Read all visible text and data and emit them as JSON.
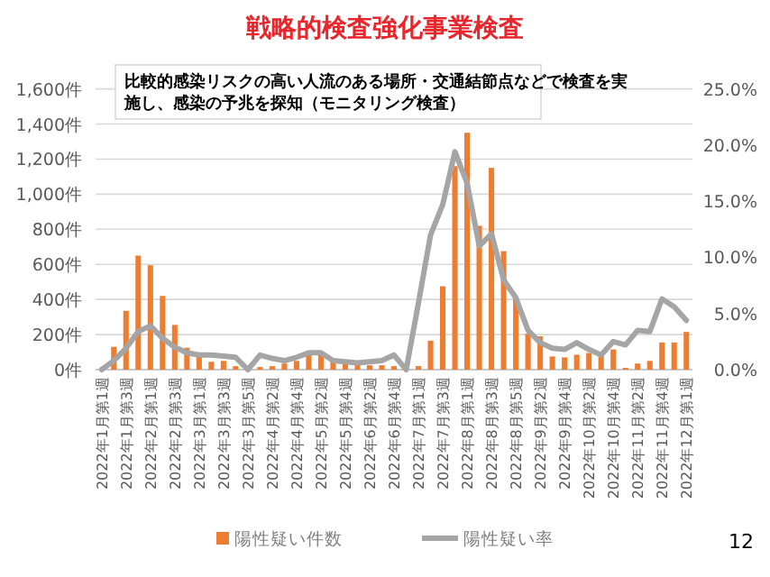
{
  "chart_data": {
    "type": "bar",
    "title": "戦略的検査強化事業検査",
    "categories": [
      "2022年1月第1週",
      null,
      "2022年1月第3週",
      null,
      "2022年2月第1週",
      null,
      "2022年2月第3週",
      null,
      "2022年3月第1週",
      null,
      "2022年3月第3週",
      null,
      "2022年3月第5週",
      null,
      "2022年4月第2週",
      null,
      "2022年4月第4週",
      null,
      "2022年5月第2週",
      null,
      "2022年5月第4週",
      null,
      "2022年6月第2週",
      null,
      "2022年6月第4週",
      null,
      "2022年7月第1週",
      null,
      "2022年7月第3週",
      null,
      "2022年8月第1週",
      null,
      "2022年8月第3週",
      null,
      "2022年8月第5週",
      null,
      "2022年9月第2週",
      null,
      "2022年9月第4週",
      null,
      "2022年10月第2週",
      null,
      "2022年10月第4週",
      null,
      "2022年11月第2週",
      null,
      "2022年11月第4週",
      null,
      "2022年12月第1週"
    ],
    "series": [
      {
        "name": "陽性疑い件数",
        "color": "#ed7d31",
        "values": [
          null,
          130,
          335,
          650,
          595,
          420,
          255,
          125,
          80,
          45,
          50,
          20,
          0,
          15,
          20,
          35,
          50,
          85,
          85,
          50,
          50,
          30,
          25,
          25,
          20,
          0,
          20,
          165,
          475,
          1160,
          1350,
          820,
          1150,
          675,
          410,
          205,
          190,
          75,
          70,
          85,
          95,
          85,
          115,
          10,
          35,
          50,
          155,
          155,
          215
        ]
      },
      {
        "name": "陽性疑い率",
        "type": "line",
        "axis": "y2",
        "color": "#a5a5a5",
        "values": [
          0,
          0.8,
          1.9,
          3.4,
          3.9,
          2.8,
          2.0,
          1.5,
          1.3,
          1.3,
          1.2,
          1.1,
          0,
          1.3,
          1.0,
          0.8,
          1.1,
          1.5,
          1.5,
          0.8,
          0.7,
          0.6,
          0.7,
          0.8,
          1.3,
          0,
          5.9,
          12,
          14.7,
          19.4,
          16.6,
          11,
          12.1,
          8,
          6.4,
          3.5,
          2.4,
          1.9,
          1.8,
          2.4,
          1.8,
          1.3,
          2.5,
          2.2,
          3.5,
          3.4,
          6.3,
          5.6,
          4.4
        ]
      }
    ],
    "ylim": [
      0,
      1600
    ],
    "yticks": [
      {
        "value": 0,
        "label": "0件"
      },
      {
        "value": 200,
        "label": "200件"
      },
      {
        "value": 400,
        "label": "400件"
      },
      {
        "value": 600,
        "label": "600件"
      },
      {
        "value": 800,
        "label": "800件"
      },
      {
        "value": 1000,
        "label": "1,000件"
      },
      {
        "value": 1200,
        "label": "1,200件"
      },
      {
        "value": 1400,
        "label": "1,400件"
      },
      {
        "value": 1600,
        "label": "1,600件"
      }
    ],
    "y2lim": [
      0,
      25
    ],
    "y2ticks": [
      {
        "value": 0,
        "label": "0.0%"
      },
      {
        "value": 5,
        "label": "5.0%"
      },
      {
        "value": 10,
        "label": "10.0%"
      },
      {
        "value": 15,
        "label": "15.0%"
      },
      {
        "value": 20,
        "label": "20.0%"
      },
      {
        "value": 25,
        "label": "25.0%"
      }
    ],
    "grid": "y",
    "legend": "bottom",
    "annotations": [
      "比較的感染リスクの高い人流のある場所・交通結節点などで検査を実施し、感染の予兆を探知（モニタリング検査）",
      "12"
    ]
  }
}
